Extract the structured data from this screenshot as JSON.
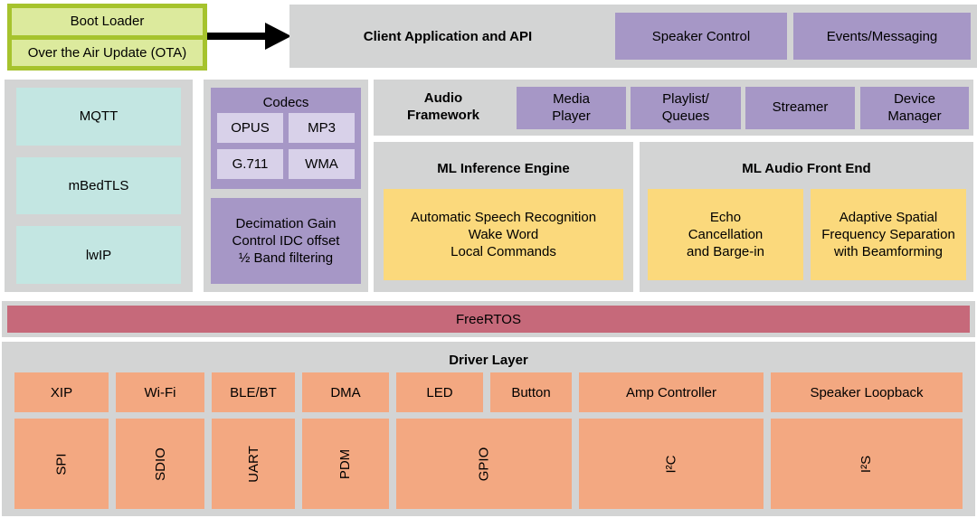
{
  "colors": {
    "container-gray": "#d3d4d4",
    "purple": "#a697c6",
    "purple-light": "#d8d1e9",
    "cyan": "#c3e6e2",
    "yellow": "#fbd97c",
    "pink": "#c6697a",
    "orange": "#f3a881",
    "green-border": "#a6c32d",
    "green-light": "#dcea9d",
    "arrow-black": "#000000"
  },
  "boot": {
    "items": [
      "Boot Loader",
      "Over the Air Update (OTA)"
    ]
  },
  "client_app": {
    "title": "Client Application and API",
    "boxes": [
      "Speaker Control",
      "Events/Messaging"
    ]
  },
  "protocols": {
    "items": [
      "MQTT",
      "mBedTLS",
      "lwIP"
    ]
  },
  "codecs": {
    "title": "Codecs",
    "items": [
      "OPUS",
      "MP3",
      "G.711",
      "WMA"
    ]
  },
  "decimation": {
    "text": "Decimation Gain\nControl IDC offset\n½ Band filtering"
  },
  "audio_framework": {
    "title": "Audio\nFramework",
    "boxes": [
      "Media\nPlayer",
      "Playlist/\nQueues",
      "Streamer",
      "Device\nManager"
    ]
  },
  "ml_inference": {
    "title": "ML Inference Engine",
    "box": "Automatic Speech Recognition\nWake Word\nLocal Commands"
  },
  "ml_audio_front_end": {
    "title": "ML Audio Front End",
    "boxes": [
      "Echo\nCancellation\nand Barge-in",
      "Adaptive Spatial\nFrequency Separation\nwith Beamforming"
    ]
  },
  "rtos": {
    "label": "FreeRTOS"
  },
  "driver_layer": {
    "title": "Driver Layer",
    "top_row": [
      "XIP",
      "Wi-Fi",
      "BLE/BT",
      "DMA",
      "LED",
      "Button",
      "Amp Controller",
      "Speaker Loopback"
    ],
    "bottom_row": [
      "SPI",
      "SDIO",
      "UART",
      "PDM",
      "GPIO",
      "I²C",
      "I²S"
    ]
  }
}
